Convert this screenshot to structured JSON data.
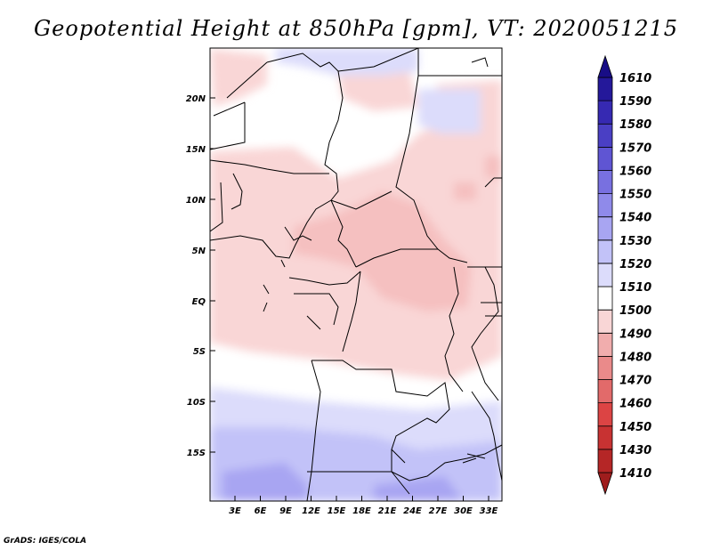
{
  "title": "Geopotential Height at 850hPa [gpm], VT: 2020051215",
  "credit": "GrADS: IGES/COLA",
  "map": {
    "lat_labels": [
      "20N",
      "15N",
      "10N",
      "5N",
      "EQ",
      "5S",
      "10S",
      "15S"
    ],
    "lon_labels": [
      "3E",
      "6E",
      "9E",
      "12E",
      "15E",
      "18E",
      "21E",
      "24E",
      "27E",
      "30E",
      "33E"
    ]
  },
  "colorbar": {
    "labels": [
      "1410",
      "1430",
      "1450",
      "1460",
      "1470",
      "1480",
      "1490",
      "1500",
      "1510",
      "1520",
      "1530",
      "1540",
      "1550",
      "1560",
      "1570",
      "1580",
      "1590",
      "1610"
    ],
    "colors": [
      "#9f1d1d",
      "#b52626",
      "#c83232",
      "#dc4444",
      "#e26a6a",
      "#ea8a8a",
      "#f1adad",
      "#f9d6d6",
      "#ffffff",
      "#dcdcfb",
      "#c2c2f8",
      "#a8a5f2",
      "#8f8aea",
      "#7870e0",
      "#5f55d3",
      "#4a3fc4",
      "#3629b2",
      "#24189a",
      "#180d86"
    ]
  }
}
